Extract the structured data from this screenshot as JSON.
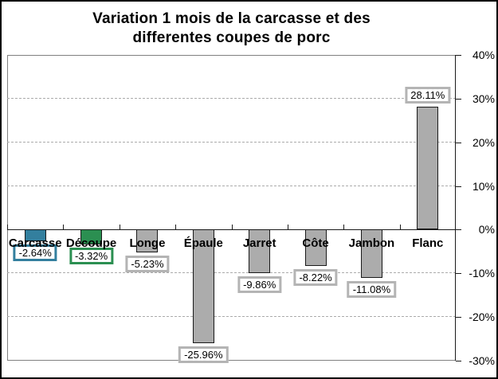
{
  "window": {
    "background": "#ffffff",
    "frame_border_color": "#000000"
  },
  "chart_data": {
    "type": "bar",
    "title": "Variation 1 mois de la carcasse et des\ndifferentes coupes de porc",
    "categories": [
      "Carcasse",
      "Découpe",
      "Longe",
      "Épaule",
      "Jarret",
      "Côte",
      "Jambon",
      "Flanc"
    ],
    "values": [
      -2.64,
      -3.32,
      -5.23,
      -25.96,
      -9.86,
      -8.22,
      -11.08,
      28.11
    ],
    "point_labels": [
      "-2.64%",
      "-3.32%",
      "-5.23%",
      "-25.96%",
      "-9.86%",
      "-8.22%",
      "-11.08%",
      "28.11%"
    ],
    "bar_colors": [
      "#337f9e",
      "#2b8f51",
      "#acacac",
      "#acacac",
      "#acacac",
      "#acacac",
      "#acacac",
      "#acacac"
    ],
    "bar_border_color": "#1a1a1a",
    "label_box_border_colors": [
      "#337f9e",
      "#2b8f51",
      "#b4b4b4",
      "#b4b4b4",
      "#b4b4b4",
      "#b4b4b4",
      "#b4b4b4",
      "#b4b4b4"
    ],
    "label_box_fill": "#ffffff",
    "y_axis": {
      "side": "right",
      "min": -30,
      "max": 40,
      "tick_step": 10,
      "tick_labels": [
        "40%",
        "30%",
        "20%",
        "10%",
        "0%",
        "-10%",
        "-20%",
        "-30%"
      ],
      "tick_values": [
        40,
        30,
        20,
        10,
        0,
        -10,
        -20,
        -30
      ]
    },
    "gridlines": {
      "style": "dashed",
      "color": "#ababab",
      "values": [
        30,
        20,
        10,
        -10,
        -20
      ]
    },
    "zero_line_color": "#1a1a1a",
    "plot_border_color": "#808080",
    "legend": "none",
    "x_axis_label": "",
    "y_axis_label": ""
  }
}
